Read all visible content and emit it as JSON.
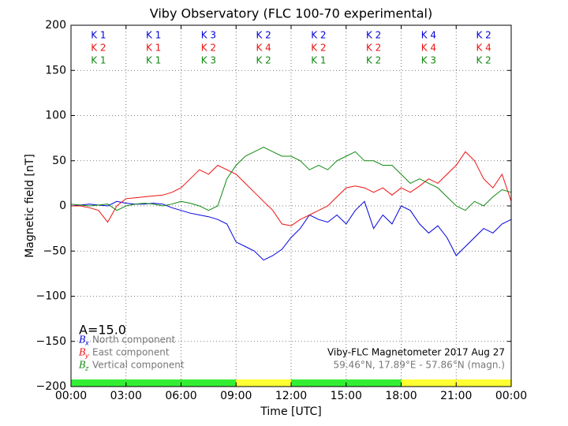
{
  "chart_data": {
    "type": "line",
    "title": "Viby Observatory (FLC 100-70 experimental)",
    "x_label": "Time [UTC]",
    "y_label": "Magnetic field [nT]",
    "annotations": [
      "A=15.0",
      "Viby-FLC Magnetometer 2017 Aug 27",
      "59.46°N, 17.89°E - 57.86°N (magn.)"
    ],
    "xlim": [
      0,
      24
    ],
    "xticks": [
      {
        "value": 0,
        "label": "00:00"
      },
      {
        "value": 3,
        "label": "03:00"
      },
      {
        "value": 6,
        "label": "06:00"
      },
      {
        "value": 9,
        "label": "09:00"
      },
      {
        "value": 12,
        "label": "12:00"
      },
      {
        "value": 15,
        "label": "15:00"
      },
      {
        "value": 18,
        "label": "18:00"
      },
      {
        "value": 21,
        "label": "21:00"
      },
      {
        "value": 24,
        "label": "00:00"
      }
    ],
    "ylim": [
      -200,
      200
    ],
    "yticks": [
      {
        "value": -200,
        "label": "−200"
      },
      {
        "value": -150,
        "label": "−150"
      },
      {
        "value": -100,
        "label": "−100"
      },
      {
        "value": -50,
        "label": "−50"
      },
      0,
      50,
      100,
      150,
      200
    ],
    "grid": true,
    "activity_colors": [
      "#33ee33",
      "#33ee33",
      "#33ee33",
      "#ffff33",
      "#33ee33",
      "#33ee33",
      "#ffff33",
      "#ffff33"
    ],
    "x": [
      0,
      0.5,
      1,
      1.5,
      2,
      2.5,
      3,
      3.5,
      4,
      4.5,
      5,
      5.5,
      6,
      6.5,
      7,
      7.5,
      8,
      8.5,
      9,
      9.5,
      10,
      10.5,
      11,
      11.5,
      12,
      12.5,
      13,
      13.5,
      14,
      14.5,
      15,
      15.5,
      16,
      16.5,
      17,
      17.5,
      18,
      18.5,
      19,
      19.5,
      20,
      20.5,
      21,
      21.5,
      22,
      22.5,
      23,
      23.5,
      24
    ],
    "series": [
      {
        "name": "North component",
        "symbol": "B",
        "subscript": "x",
        "color": "#0000dd",
        "k_labels": [
          "K 1",
          "K 1",
          "K 3",
          "K 2",
          "K 2",
          "K 2",
          "K 4",
          "K 2"
        ],
        "values": [
          0,
          1,
          2,
          1,
          0,
          5,
          3,
          2,
          2,
          3,
          2,
          -2,
          -5,
          -8,
          -10,
          -12,
          -15,
          -20,
          -40,
          -45,
          -50,
          -60,
          -55,
          -48,
          -35,
          -25,
          -10,
          -15,
          -18,
          -10,
          -20,
          -5,
          5,
          -25,
          -10,
          -20,
          0,
          -5,
          -20,
          -30,
          -22,
          -35,
          -55,
          -45,
          -35,
          -25,
          -30,
          -20,
          -15
        ]
      },
      {
        "name": "East component",
        "symbol": "B",
        "subscript": "y",
        "color": "#ee1111",
        "k_labels": [
          "K 2",
          "K 1",
          "K 2",
          "K 4",
          "K 2",
          "K 2",
          "K 4",
          "K 4"
        ],
        "values": [
          0,
          0,
          -2,
          -5,
          -18,
          0,
          8,
          9,
          10,
          11,
          12,
          15,
          20,
          30,
          40,
          35,
          45,
          40,
          35,
          25,
          15,
          5,
          -5,
          -20,
          -22,
          -15,
          -10,
          -5,
          0,
          10,
          20,
          22,
          20,
          15,
          20,
          12,
          20,
          15,
          22,
          30,
          25,
          35,
          45,
          60,
          50,
          30,
          20,
          35,
          5
        ]
      },
      {
        "name": "Vertical component",
        "symbol": "B",
        "subscript": "z",
        "color": "#118811",
        "k_labels": [
          "K 1",
          "K 1",
          "K 3",
          "K 2",
          "K 1",
          "K 2",
          "K 3",
          "K 2"
        ],
        "values": [
          2,
          1,
          0,
          1,
          2,
          -5,
          0,
          2,
          3,
          2,
          0,
          2,
          5,
          3,
          0,
          -5,
          0,
          30,
          45,
          55,
          60,
          65,
          60,
          55,
          55,
          50,
          40,
          45,
          40,
          50,
          55,
          60,
          50,
          50,
          45,
          45,
          35,
          25,
          30,
          25,
          20,
          10,
          0,
          -5,
          5,
          0,
          10,
          18,
          15
        ]
      }
    ]
  }
}
